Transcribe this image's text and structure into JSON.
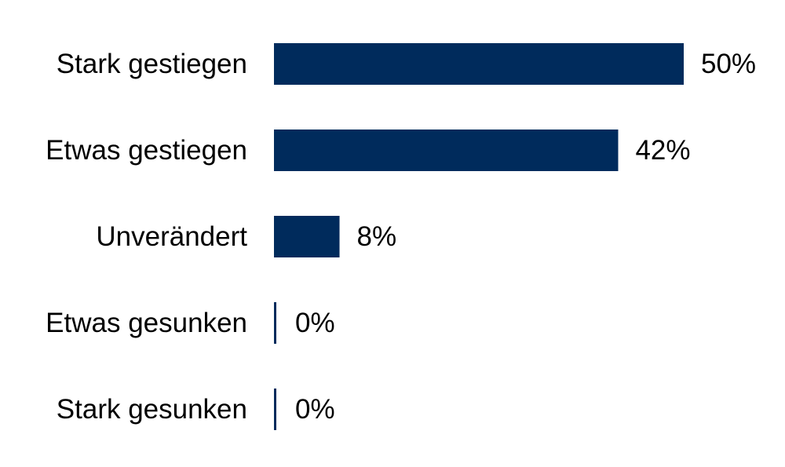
{
  "chart_data": {
    "type": "bar",
    "orientation": "horizontal",
    "categories": [
      "Stark gestiegen",
      "Etwas gestiegen",
      "Unverändert",
      "Etwas gesunken",
      "Stark gesunken"
    ],
    "values": [
      50,
      42,
      8,
      0,
      0
    ],
    "value_labels": [
      "50%",
      "42%",
      "8%",
      "0%",
      "0%"
    ],
    "unit": "%",
    "title": "",
    "xlabel": "",
    "ylabel": "",
    "xlim": [
      0,
      50
    ],
    "grid": false,
    "legend": "none",
    "bar_color": "#002b5c"
  }
}
